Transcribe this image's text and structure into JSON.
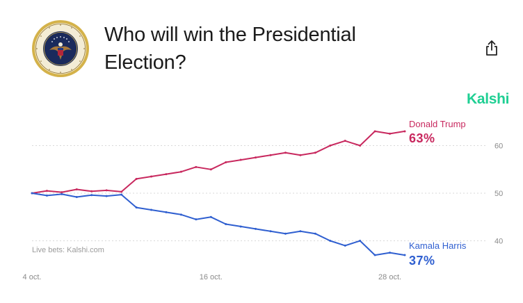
{
  "header": {
    "title": "Who will win the Presidential Election?",
    "brand": "Kalshi"
  },
  "icons": {
    "seal": "presidential-seal",
    "share": "share-icon"
  },
  "colors": {
    "trump": "#c8285e",
    "harris": "#2f5fd0",
    "brand": "#1fcf93"
  },
  "chart_data": {
    "type": "line",
    "x_ticks": [
      "4 oct.",
      "16 oct.",
      "28 oct."
    ],
    "x": [
      "2024-10-04",
      "2024-10-05",
      "2024-10-06",
      "2024-10-07",
      "2024-10-08",
      "2024-10-09",
      "2024-10-10",
      "2024-10-11",
      "2024-10-12",
      "2024-10-13",
      "2024-10-14",
      "2024-10-15",
      "2024-10-16",
      "2024-10-17",
      "2024-10-18",
      "2024-10-19",
      "2024-10-20",
      "2024-10-21",
      "2024-10-22",
      "2024-10-23",
      "2024-10-24",
      "2024-10-25",
      "2024-10-26",
      "2024-10-27",
      "2024-10-28",
      "2024-10-29"
    ],
    "yticks": [
      40,
      50,
      60
    ],
    "ylim": [
      36,
      68
    ],
    "grid": true,
    "series": [
      {
        "name": "Donald Trump",
        "current": "63%",
        "values": [
          50,
          50.5,
          50.2,
          50.8,
          50.4,
          50.6,
          50.3,
          53,
          53.5,
          54,
          54.5,
          55.5,
          55,
          56.5,
          57,
          57.5,
          58,
          58.5,
          58,
          58.5,
          60,
          61,
          60,
          63,
          62.5,
          63
        ]
      },
      {
        "name": "Kamala Harris",
        "current": "37%",
        "values": [
          50,
          49.5,
          49.8,
          49.2,
          49.6,
          49.4,
          49.7,
          47,
          46.5,
          46,
          45.5,
          44.5,
          45,
          43.5,
          43,
          42.5,
          42,
          41.5,
          42,
          41.5,
          40,
          39,
          40,
          37,
          37.5,
          37
        ]
      }
    ],
    "source": "Live bets: Kalshi.com"
  }
}
